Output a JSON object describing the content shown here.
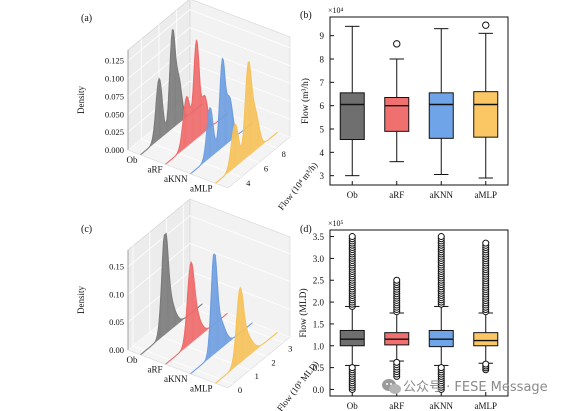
{
  "panels": [
    {
      "id": "a",
      "label": "(a)",
      "chart_data": {
        "type": "area",
        "mode": "3d-density",
        "categories": [
          "Ob",
          "aRF",
          "aKNN",
          "aMLP"
        ],
        "x_ticks": [
          "4",
          "6",
          "8"
        ],
        "x_label": "Flow (10⁴ m³/h)",
        "z_label": "Density",
        "z_ticks": [
          "0.000",
          "0.025",
          "0.050",
          "0.075",
          "0.100",
          "0.125"
        ],
        "zlim": [
          0,
          0.14
        ],
        "colors": [
          "#7b7b7b",
          "#ef6a6a",
          "#6e9ee0",
          "#f6c25a"
        ],
        "series": [
          {
            "name": "Ob",
            "peaks": [
              [
                4.6,
                0.085,
                0.35
              ],
              [
                6.1,
                0.13,
                0.3
              ],
              [
                6.8,
                0.06,
                0.35
              ]
            ]
          },
          {
            "name": "aRF",
            "peaks": [
              [
                4.9,
                0.07,
                0.4
              ],
              [
                6.0,
                0.135,
                0.3
              ],
              [
                6.9,
                0.05,
                0.35
              ]
            ]
          },
          {
            "name": "aKNN",
            "peaks": [
              [
                4.7,
                0.07,
                0.35
              ],
              [
                6.1,
                0.12,
                0.3
              ],
              [
                6.9,
                0.06,
                0.35
              ]
            ]
          },
          {
            "name": "aMLP",
            "peaks": [
              [
                4.7,
                0.06,
                0.4
              ],
              [
                6.2,
                0.125,
                0.35
              ],
              [
                7.0,
                0.05,
                0.4
              ]
            ]
          }
        ],
        "xlim": [
          2.5,
          9.5
        ]
      }
    },
    {
      "id": "b",
      "label": "(b)",
      "chart_data": {
        "type": "box",
        "exponent": "×10⁴",
        "y_label": "Flow (m³/h)",
        "y_ticks": [
          "3",
          "4",
          "5",
          "6",
          "7",
          "8",
          "9"
        ],
        "ylim": [
          2.6,
          9.8
        ],
        "categories": [
          "Ob",
          "aRF",
          "aKNN",
          "aMLP"
        ],
        "colors": [
          "#6f6f6f",
          "#f07070",
          "#6fa4e8",
          "#fbc664"
        ],
        "boxes": [
          {
            "name": "Ob",
            "min": 3.0,
            "q1": 4.55,
            "median": 6.05,
            "q3": 6.55,
            "max": 9.4,
            "outliers": []
          },
          {
            "name": "aRF",
            "min": 3.6,
            "q1": 4.9,
            "median": 6.0,
            "q3": 6.35,
            "max": 8.0,
            "outliers": [
              8.65
            ]
          },
          {
            "name": "aKNN",
            "min": 3.05,
            "q1": 4.6,
            "median": 6.05,
            "q3": 6.55,
            "max": 9.3,
            "outliers": []
          },
          {
            "name": "aMLP",
            "min": 2.9,
            "q1": 4.65,
            "median": 6.05,
            "q3": 6.6,
            "max": 9.1,
            "outliers": [
              9.45
            ]
          }
        ]
      }
    },
    {
      "id": "c",
      "label": "(c)",
      "chart_data": {
        "type": "area",
        "mode": "3d-density",
        "categories": [
          "Ob",
          "aRF",
          "aKNN",
          "aMLP"
        ],
        "x_ticks": [
          "0",
          "1",
          "2",
          "3"
        ],
        "x_label": "Flow (10⁵ MLD)",
        "z_label": "Density",
        "z_ticks": [
          "0.00",
          "0.05",
          "0.10",
          "0.15"
        ],
        "zlim": [
          0,
          0.18
        ],
        "colors": [
          "#7b7b7b",
          "#ef6a6a",
          "#6e9ee0",
          "#f6c25a"
        ],
        "series": [
          {
            "name": "Ob",
            "peaks": [
              [
                1.15,
                0.16,
                0.18
              ],
              [
                1.45,
                0.05,
                0.3
              ]
            ]
          },
          {
            "name": "aRF",
            "peaks": [
              [
                1.2,
                0.12,
                0.2
              ],
              [
                1.5,
                0.04,
                0.3
              ]
            ]
          },
          {
            "name": "aKNN",
            "peaks": [
              [
                1.1,
                0.16,
                0.17
              ],
              [
                1.45,
                0.05,
                0.3
              ]
            ]
          },
          {
            "name": "aMLP",
            "peaks": [
              [
                1.15,
                0.11,
                0.2
              ],
              [
                1.5,
                0.04,
                0.35
              ]
            ]
          }
        ],
        "xlim": [
          -0.3,
          3.4
        ]
      }
    },
    {
      "id": "d",
      "label": "(d)",
      "chart_data": {
        "type": "box",
        "exponent": "×10⁵",
        "y_label": "Flow (MLD)",
        "y_ticks": [
          "0.0",
          "0.5",
          "1.0",
          "1.5",
          "2.0",
          "2.5",
          "3.0",
          "3.5"
        ],
        "ylim": [
          -0.15,
          3.65
        ],
        "categories": [
          "Ob",
          "aRF",
          "aKNN",
          "aMLP"
        ],
        "colors": [
          "#6f6f6f",
          "#f07070",
          "#6fa4e8",
          "#fbc664"
        ],
        "boxes": [
          {
            "name": "Ob",
            "min": 0.55,
            "q1": 1.0,
            "median": 1.15,
            "q3": 1.35,
            "max": 1.9,
            "out_low": [
              0.0,
              0.5
            ],
            "out_high": [
              1.9,
              3.5
            ]
          },
          {
            "name": "aRF",
            "min": 0.65,
            "q1": 1.02,
            "median": 1.15,
            "q3": 1.3,
            "max": 1.75,
            "out_low": [
              0.3,
              0.62
            ],
            "out_high": [
              1.78,
              2.5
            ]
          },
          {
            "name": "aKNN",
            "min": 0.55,
            "q1": 0.98,
            "median": 1.15,
            "q3": 1.35,
            "max": 1.9,
            "out_low": [
              0.0,
              0.5
            ],
            "out_high": [
              1.95,
              3.5
            ]
          },
          {
            "name": "aMLP",
            "min": 0.6,
            "q1": 1.0,
            "median": 1.12,
            "q3": 1.3,
            "max": 1.75,
            "out_low": [
              0.45,
              0.58
            ],
            "out_high": [
              1.78,
              3.35
            ]
          }
        ]
      }
    }
  ],
  "watermark": {
    "text": "公众号 · FESE Message",
    "icon": "wechat-bubble-icon"
  }
}
